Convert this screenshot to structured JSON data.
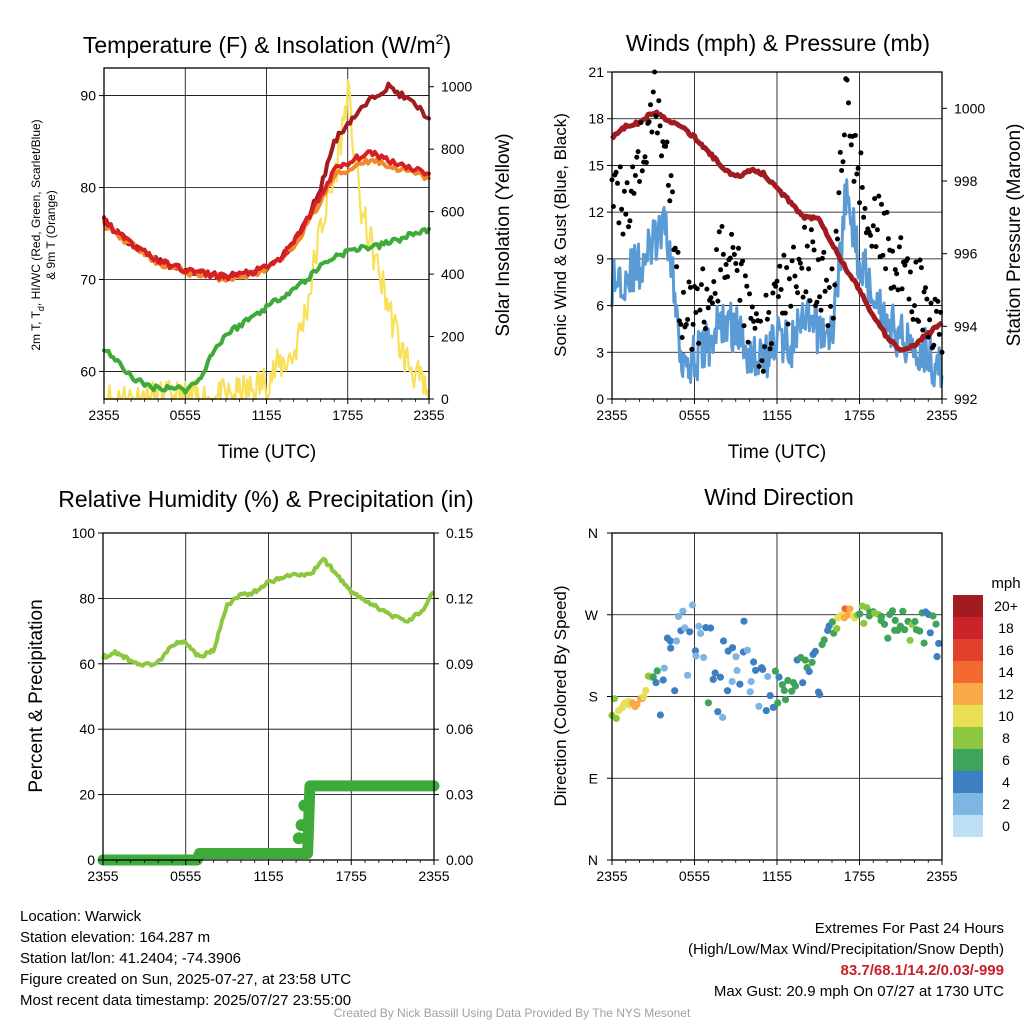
{
  "panels": {
    "temp": {
      "title": "Temperature (F) & Insolation (W/m",
      "title_sup": "2",
      "title_close": ")",
      "ylabel_line1": "2m T, T",
      "ylabel_sub": "d",
      "ylabel_rest": ", HI/WC (Red, Green, Scarlet/Blue)",
      "ylabel_line2": "& 9m T (Orange)",
      "y2label": "Solar Insolation (Yellow)",
      "xlabel": "Time (UTC)",
      "left_ticks": [
        "60",
        "70",
        "80",
        "90"
      ],
      "right_ticks": [
        "0",
        "200",
        "400",
        "600",
        "800",
        "1000"
      ],
      "x_ticks": [
        "2355",
        "0555",
        "1155",
        "1755",
        "2355"
      ]
    },
    "wind": {
      "title": "Winds (mph) & Pressure (mb)",
      "ylabel": "Sonic Wind & Gust (Blue, Black)",
      "y2label": "Station Pressure (Maroon)",
      "xlabel": "Time (UTC)",
      "left_ticks": [
        "0",
        "3",
        "6",
        "9",
        "12",
        "15",
        "18",
        "21"
      ],
      "right_ticks": [
        "992",
        "994",
        "996",
        "998",
        "1000"
      ],
      "x_ticks": [
        "2355",
        "0555",
        "1155",
        "1755",
        "2355"
      ]
    },
    "rh": {
      "title": "Relative Humidity (%) & Precipitation (in)",
      "ylabel": "Percent & Precipitation",
      "left_ticks": [
        "0",
        "20",
        "40",
        "60",
        "80",
        "100"
      ],
      "right_ticks": [
        "0.00",
        "0.03",
        "0.06",
        "0.09",
        "0.12",
        "0.15"
      ],
      "x_ticks": [
        "2355",
        "0555",
        "1155",
        "1755",
        "2355"
      ]
    },
    "dir": {
      "title": "Wind Direction",
      "ylabel": "Direction (Colored By Speed)",
      "y_ticks": [
        "N",
        "E",
        "S",
        "W",
        "N"
      ],
      "x_ticks": [
        "2355",
        "0555",
        "1155",
        "1755",
        "2355"
      ],
      "legend_title": "mph",
      "legend_labels": [
        "20+",
        "18",
        "16",
        "14",
        "12",
        "10",
        "8",
        "6",
        "4",
        "2",
        "0"
      ],
      "legend_colors": [
        "#a01c20",
        "#cc2229",
        "#e2402c",
        "#f26a30",
        "#f9a947",
        "#e9df55",
        "#8dc63f",
        "#3fa45a",
        "#3d7fc1",
        "#7eb6e3",
        "#bde0f5"
      ]
    }
  },
  "info": {
    "location": "Location: Warwick",
    "elevation": "Station elevation: 164.287 m",
    "latlon": "Station lat/lon: 41.2404; -74.3906",
    "created": "Figure created on Sun, 2025-07-27, at 23:58 UTC",
    "recent": "Most recent data timestamp: 2025/07/27 23:55:00"
  },
  "extremes": {
    "title": "Extremes For Past 24 Hours",
    "subtitle": "(High/Low/Max Wind/Precipitation/Snow Depth)",
    "values": "83.7/68.1/14.2/0.03/-999",
    "max_gust": "Max Gust: 20.9 mph On 07/27 at 1730 UTC"
  },
  "credit": "Created By Nick Bassill Using Data Provided By The NYS Mesonet",
  "chart_data": [
    {
      "type": "line",
      "title": "Temperature (F) & Insolation (W/m2)",
      "xlabel": "Time (UTC)",
      "ylabel": "2m T, Td, HI/WC (Red, Green, Scarlet/Blue) & 9m T (Orange)",
      "y2label": "Solar Insolation (Yellow)",
      "ylim": [
        57,
        93
      ],
      "y2lim": [
        0,
        1060
      ],
      "x": [
        0,
        1,
        2,
        3,
        4,
        5,
        6,
        7,
        8,
        9,
        10,
        11,
        12,
        13,
        14,
        15,
        16,
        17,
        18,
        19,
        20,
        21,
        22,
        23,
        24
      ],
      "x_tick_labels": [
        "2355",
        "0555",
        "1155",
        "1755",
        "2355"
      ],
      "series": [
        {
          "name": "2m T",
          "color": "#d62024",
          "axis": "left",
          "values": [
            76.5,
            75,
            74,
            73,
            72,
            71.5,
            71,
            70.8,
            70.5,
            70.3,
            70.5,
            70.8,
            71.3,
            72.2,
            74,
            76.5,
            79,
            82,
            82.5,
            83.5,
            83.7,
            83,
            82.5,
            82,
            81.5
          ]
        },
        {
          "name": "9m T",
          "color": "#f08a2c",
          "axis": "left",
          "values": [
            76,
            74.8,
            73.8,
            72.8,
            71.8,
            71.3,
            70.8,
            70.6,
            70.3,
            70.1,
            70.3,
            70.6,
            71.1,
            72,
            73.6,
            76,
            78.5,
            81.3,
            81.8,
            82.8,
            83,
            82.3,
            82,
            81.5,
            81
          ]
        },
        {
          "name": "HI/WC",
          "color": "#a01c20",
          "axis": "left",
          "values": [
            76.5,
            75,
            74,
            73,
            72,
            71.5,
            71,
            70.8,
            70.5,
            70.3,
            70.5,
            70.8,
            71.3,
            72.2,
            74,
            76.5,
            80,
            85,
            87,
            88.5,
            90,
            91,
            90,
            89,
            87.5
          ]
        },
        {
          "name": "2m Td",
          "color": "#3daa3a",
          "axis": "left",
          "values": [
            62.5,
            61,
            59.5,
            58.5,
            58.2,
            58.3,
            58,
            59,
            62,
            64,
            65,
            66,
            67,
            68,
            69,
            70,
            71.5,
            72.5,
            73,
            73.5,
            73.5,
            74,
            74.5,
            75,
            75.5
          ]
        },
        {
          "name": "Solar Insolation",
          "color": "#f9e05a",
          "axis": "right",
          "values": [
            0,
            0,
            0,
            0,
            0,
            0,
            0,
            0,
            0,
            5,
            15,
            30,
            60,
            110,
            140,
            300,
            550,
            700,
            980,
            600,
            450,
            300,
            150,
            80,
            0
          ]
        }
      ]
    },
    {
      "type": "line",
      "title": "Winds (mph) & Pressure (mb)",
      "xlabel": "Time (UTC)",
      "ylabel": "Sonic Wind & Gust (Blue, Black)",
      "y2label": "Station Pressure (Maroon)",
      "ylim": [
        0,
        21
      ],
      "y2lim": [
        992,
        1001
      ],
      "x": [
        0,
        1,
        2,
        3,
        4,
        5,
        6,
        7,
        8,
        9,
        10,
        11,
        12,
        13,
        14,
        15,
        16,
        17,
        18,
        19,
        20,
        21,
        22,
        23,
        24
      ],
      "x_tick_labels": [
        "2355",
        "0555",
        "1155",
        "1755",
        "2355"
      ],
      "series": [
        {
          "name": "Sonic Wind",
          "color": "#5b9bd5",
          "axis": "left",
          "values": [
            7.5,
            8,
            8.5,
            10,
            11,
            3,
            2.5,
            3.5,
            5,
            4.5,
            3,
            2.5,
            4,
            3.5,
            5,
            4.5,
            4,
            13,
            9,
            7,
            5,
            4,
            3.5,
            3,
            1.5
          ]
        },
        {
          "name": "Gust",
          "color": "#000000",
          "axis": "left",
          "values": [
            12,
            13,
            15,
            19,
            17,
            6,
            5,
            7,
            9,
            8,
            5,
            4,
            7,
            7,
            9,
            8,
            6,
            19,
            14,
            12,
            10,
            8,
            7,
            6,
            3
          ]
        },
        {
          "name": "Station Pressure",
          "color": "#a01c20",
          "axis": "right",
          "values": [
            999.2,
            999.5,
            999.6,
            999.9,
            999.7,
            999.5,
            999.2,
            998.8,
            998.4,
            998.1,
            998.3,
            998.2,
            997.8,
            997.4,
            997.0,
            997.0,
            996.3,
            995.6,
            995.0,
            994.3,
            993.7,
            993.3,
            993.5,
            993.8,
            994.1
          ]
        }
      ]
    },
    {
      "type": "line",
      "title": "Relative Humidity (%) & Precipitation (in)",
      "ylabel": "Percent & Precipitation",
      "ylim": [
        0,
        100
      ],
      "y2lim": [
        0,
        0.15
      ],
      "x": [
        0,
        1,
        2,
        3,
        4,
        5,
        6,
        7,
        8,
        9,
        10,
        11,
        12,
        13,
        14,
        15,
        16,
        17,
        18,
        19,
        20,
        21,
        22,
        23,
        24
      ],
      "x_tick_labels": [
        "2355",
        "0555",
        "1155",
        "1755",
        "2355"
      ],
      "series": [
        {
          "name": "Relative Humidity",
          "color": "#8dc63f",
          "axis": "left",
          "values": [
            62,
            63.5,
            61,
            59.5,
            60.5,
            66,
            66.5,
            62,
            64,
            78,
            81,
            82,
            85,
            86.5,
            87.5,
            87,
            92,
            87,
            82,
            79,
            77,
            74.5,
            73,
            75.5,
            82
          ]
        },
        {
          "name": "Precipitation",
          "color": "#3daa3a",
          "axis": "right",
          "values": [
            0,
            0,
            0,
            0,
            0,
            0,
            0,
            0.003,
            0.003,
            0.003,
            0.003,
            0.003,
            0.003,
            0.003,
            0.003,
            0.034,
            0.034,
            0.034,
            0.034,
            0.034,
            0.034,
            0.034,
            0.034,
            0.034,
            0.034
          ]
        }
      ]
    },
    {
      "type": "scatter",
      "title": "Wind Direction",
      "ylabel": "Direction (Colored By Speed)",
      "y_tick_labels": [
        "N",
        "E",
        "S",
        "W",
        "N"
      ],
      "ylim": [
        0,
        360
      ],
      "x_tick_labels": [
        "2355",
        "0555",
        "1155",
        "1755",
        "2355"
      ],
      "x": [
        0,
        1,
        2,
        3,
        4,
        5,
        6,
        7,
        8,
        9,
        10,
        11,
        12,
        13,
        14,
        15,
        16,
        17,
        18,
        19,
        20,
        21,
        22,
        23,
        24
      ],
      "values": [
        165,
        170,
        175,
        190,
        210,
        230,
        240,
        215,
        200,
        230,
        220,
        205,
        185,
        195,
        215,
        205,
        260,
        275,
        270,
        265,
        260,
        262,
        258,
        255,
        250
      ],
      "speeds": [
        8,
        10,
        12,
        6,
        3,
        3,
        3,
        4,
        3,
        4,
        3,
        2,
        5,
        6,
        6,
        4,
        6,
        13,
        8,
        7,
        6,
        7,
        6,
        6,
        4
      ]
    }
  ]
}
